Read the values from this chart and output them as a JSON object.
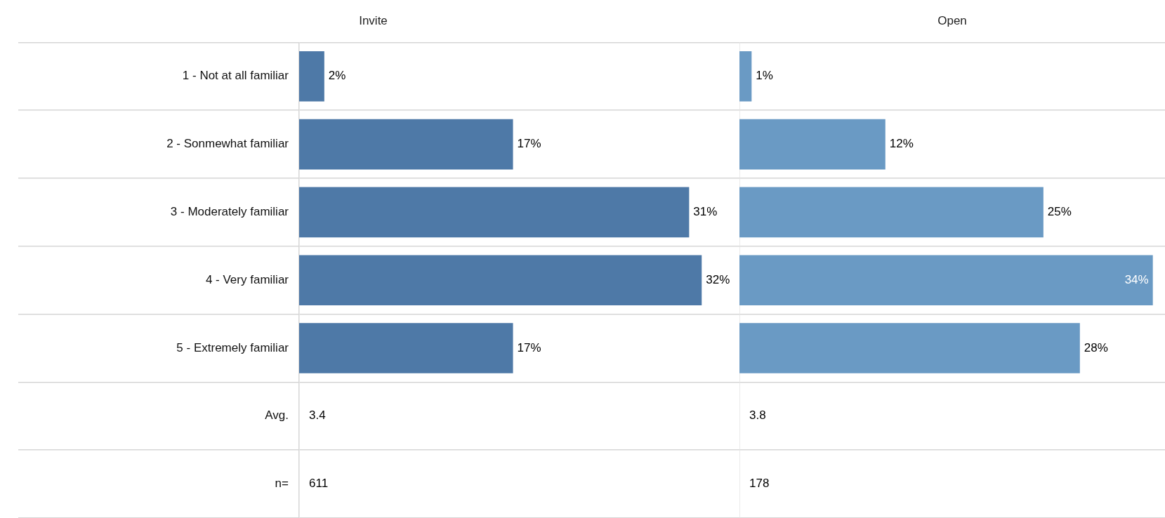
{
  "chart_data": [
    {
      "type": "bar",
      "orientation": "horizontal",
      "title": "Invite",
      "categories": [
        "1 - Not at all familiar",
        "2 - Sonmewhat familiar",
        "3 - Moderately familiar",
        "4 - Very familiar",
        "5 - Extremely familiar",
        "Avg.",
        "n="
      ],
      "values": [
        2,
        17,
        31,
        32,
        17,
        null,
        null
      ],
      "value_labels": [
        "2%",
        "17%",
        "31%",
        "32%",
        "17%",
        "3.4",
        "611"
      ],
      "color": "#4e79a7",
      "grid": "y",
      "legend": false,
      "tick_labels": "y"
    },
    {
      "type": "bar",
      "orientation": "horizontal",
      "title": "Open",
      "categories": [
        null,
        null,
        null,
        null,
        null,
        null,
        null
      ],
      "values": [
        1,
        12,
        25,
        34,
        28,
        null,
        null
      ],
      "value_labels": [
        "1%",
        "12%",
        "25%",
        "34%",
        "28%",
        "3.8",
        "178"
      ],
      "color": "#6a9ac4",
      "grid": "y",
      "legend": false,
      "tick_labels": false
    }
  ]
}
